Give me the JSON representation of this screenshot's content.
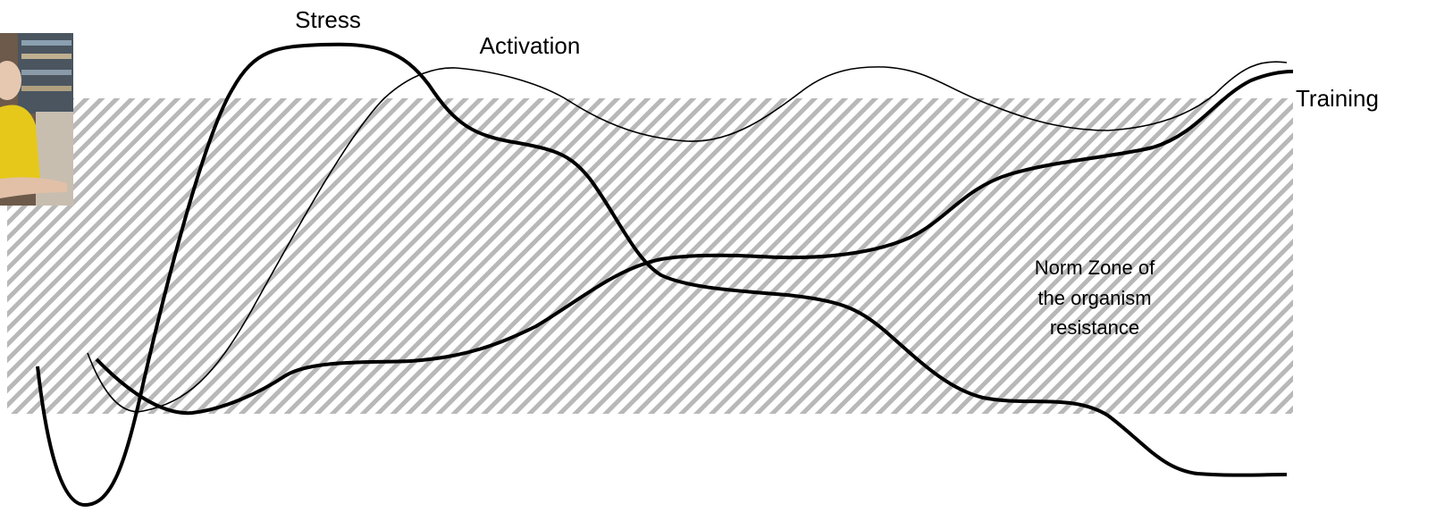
{
  "labels": {
    "stress": "Stress",
    "activation": "Activation",
    "training": "Training"
  },
  "zone": {
    "label_lines": [
      "Norm Zone of",
      "the organism",
      "resistance"
    ]
  }
}
